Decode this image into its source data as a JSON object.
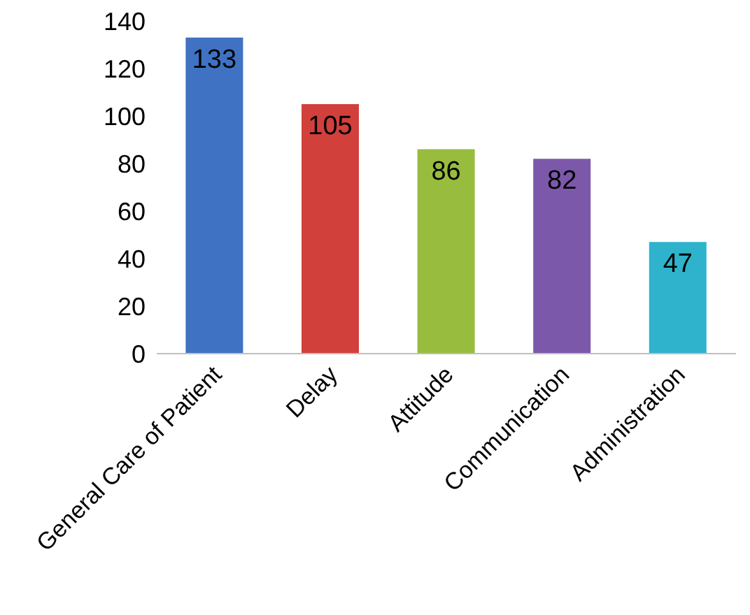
{
  "chart_data": {
    "type": "bar",
    "categories": [
      "General Care of Patient",
      "Delay",
      "Attitude",
      "Communication",
      "Administration"
    ],
    "values": [
      133,
      105,
      86,
      82,
      47
    ],
    "colors": [
      "#3f72c2",
      "#d2403b",
      "#98bc3e",
      "#7c58aa",
      "#2fb3cd"
    ],
    "ylim": [
      0,
      140
    ],
    "yticks": [
      0,
      20,
      40,
      60,
      80,
      100,
      120,
      140
    ],
    "grid": false,
    "data_labels": true
  }
}
